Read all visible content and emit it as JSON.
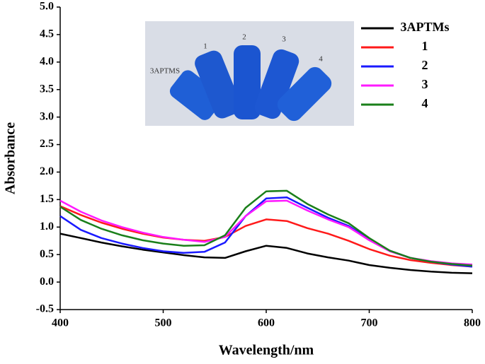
{
  "chart_data": {
    "type": "line",
    "x_label": "Wavelength/nm",
    "y_label": "Absorbance",
    "xlim": [
      400,
      800
    ],
    "xticks": [
      400,
      500,
      600,
      700,
      800
    ],
    "ylim": [
      -0.5,
      5.0
    ],
    "yticks": [
      -0.5,
      {
        "value": 0,
        "label": "0.0"
      },
      0.5,
      {
        "value": 1,
        "label": "1.0"
      },
      1.5,
      {
        "value": 2,
        "label": "2.0"
      },
      2.5,
      {
        "value": 3,
        "label": "3.0"
      },
      3.5,
      {
        "value": 4,
        "label": "4.0"
      },
      4.5,
      {
        "value": 5,
        "label": "5.0"
      }
    ],
    "legend": "upper right",
    "inset_labels": [
      "3APTMS",
      "1",
      "2",
      "3",
      "4"
    ],
    "x": [
      400,
      420,
      440,
      460,
      480,
      500,
      520,
      540,
      560,
      580,
      600,
      620,
      640,
      660,
      680,
      700,
      720,
      740,
      760,
      780,
      800
    ],
    "series": [
      {
        "name": "3APTMs",
        "color": "#000000",
        "values": [
          0.88,
          0.8,
          0.72,
          0.65,
          0.59,
          0.54,
          0.49,
          0.45,
          0.44,
          0.56,
          0.66,
          0.62,
          0.52,
          0.45,
          0.39,
          0.31,
          0.26,
          0.22,
          0.19,
          0.17,
          0.16
        ]
      },
      {
        "name": "1",
        "color": "#ff1a1a",
        "values": [
          1.38,
          1.22,
          1.08,
          0.97,
          0.88,
          0.81,
          0.77,
          0.75,
          0.82,
          1.02,
          1.14,
          1.11,
          0.98,
          0.88,
          0.75,
          0.6,
          0.48,
          0.4,
          0.35,
          0.31,
          0.28
        ]
      },
      {
        "name": "2",
        "color": "#1a1aff",
        "values": [
          1.2,
          0.95,
          0.8,
          0.7,
          0.62,
          0.56,
          0.53,
          0.55,
          0.72,
          1.2,
          1.52,
          1.54,
          1.35,
          1.17,
          1.02,
          0.78,
          0.57,
          0.44,
          0.37,
          0.32,
          0.28
        ]
      },
      {
        "name": "3",
        "color": "#ff1aff",
        "values": [
          1.48,
          1.28,
          1.12,
          1.0,
          0.9,
          0.82,
          0.77,
          0.73,
          0.82,
          1.2,
          1.47,
          1.48,
          1.3,
          1.14,
          1.0,
          0.76,
          0.56,
          0.44,
          0.38,
          0.34,
          0.32
        ]
      },
      {
        "name": "4",
        "color": "#1a7f1a",
        "values": [
          1.37,
          1.13,
          0.97,
          0.85,
          0.76,
          0.7,
          0.66,
          0.67,
          0.85,
          1.35,
          1.65,
          1.66,
          1.42,
          1.23,
          1.07,
          0.8,
          0.57,
          0.44,
          0.37,
          0.33,
          0.3
        ]
      }
    ]
  }
}
